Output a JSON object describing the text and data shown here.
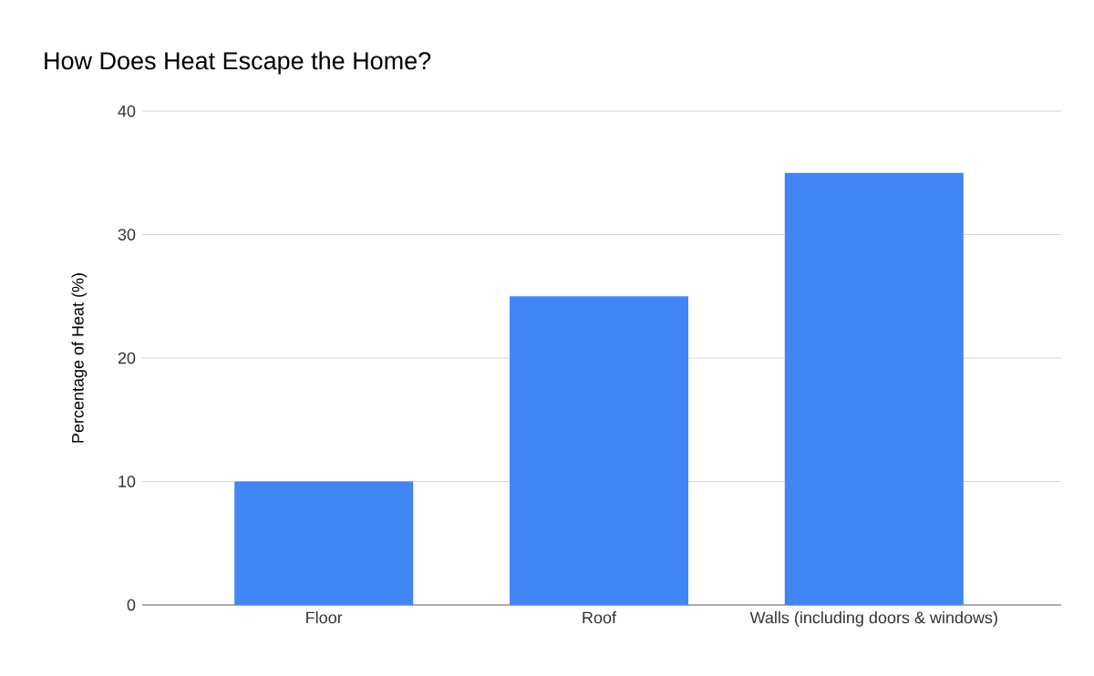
{
  "chart_data": {
    "type": "bar",
    "title": "How Does Heat Escape the Home?",
    "ylabel": "Percentage of Heat (%)",
    "categories": [
      "Floor",
      "Roof",
      "Walls (including doors & windows)"
    ],
    "values": [
      10,
      25,
      35
    ],
    "color": "#4285f4",
    "ylim": [
      0,
      40
    ],
    "yticks": [
      0,
      10,
      20,
      30,
      40
    ],
    "grid": "y"
  }
}
